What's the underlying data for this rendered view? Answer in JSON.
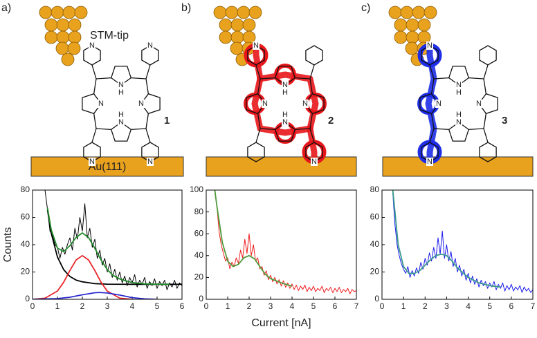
{
  "figure": {
    "structures": [
      {
        "panel": "a)",
        "compound": "1",
        "tip_label": "STM-tip",
        "substrate_label": "Au(111)",
        "atoms": [
          "N",
          "N",
          "N",
          "N",
          "H",
          "H",
          "N",
          "N",
          "N",
          "N"
        ]
      },
      {
        "panel": "b)",
        "compound": "2",
        "atoms": [
          "N",
          "N",
          "N",
          "N",
          "H",
          "H",
          "N",
          "N"
        ]
      },
      {
        "panel": "c)",
        "compound": "3",
        "atoms": [
          "N",
          "N",
          "N",
          "N",
          "H",
          "H",
          "N",
          "N"
        ]
      }
    ]
  },
  "chart_data": [
    {
      "type": "line",
      "y_label": "Counts",
      "xlim": [
        0,
        6
      ],
      "ylim": [
        0,
        80
      ],
      "xticks": [
        0,
        1,
        2,
        3,
        4,
        5,
        6
      ],
      "yticks": [
        0,
        20,
        40,
        60,
        80
      ],
      "series": [
        {
          "color": "#000000",
          "x": [
            0.5,
            0.6,
            0.7,
            0.8,
            0.9,
            1.0,
            1.1,
            1.2,
            1.3,
            1.4,
            1.5,
            1.6,
            1.7,
            1.8,
            1.9,
            2.0,
            2.1,
            2.2,
            2.3,
            2.4,
            2.5,
            2.6,
            2.7,
            2.8,
            2.9,
            3.0,
            3.1,
            3.2,
            3.3,
            3.4,
            3.5,
            3.6,
            3.7,
            3.8,
            3.9,
            4.0,
            4.1,
            4.2,
            4.3,
            4.4,
            4.5,
            4.6,
            4.7,
            4.8,
            4.9,
            5.0,
            5.1,
            5.2,
            5.3,
            5.4,
            5.5,
            5.6,
            5.7,
            5.8,
            5.9,
            6.0
          ],
          "values": [
            80,
            66,
            50,
            47,
            40,
            38,
            30,
            38,
            33,
            40,
            45,
            36,
            52,
            44,
            60,
            50,
            70,
            45,
            52,
            38,
            44,
            30,
            36,
            25,
            30,
            20,
            26,
            16,
            22,
            14,
            20,
            12,
            17,
            10,
            16,
            12,
            18,
            9,
            14,
            11,
            16,
            8,
            13,
            10,
            15,
            8,
            13,
            10,
            14,
            7,
            12,
            9,
            14,
            8,
            12,
            10
          ]
        },
        {
          "color": "#000000",
          "x": [
            0.6,
            0.75,
            1.0,
            1.25,
            1.5,
            1.75,
            2.0,
            2.5,
            3.0,
            4.0,
            5.0,
            6.0
          ],
          "values": [
            65.5,
            48.5,
            31,
            21.7,
            16.7,
            14.1,
            12.8,
            11.5,
            11.1,
            11,
            11,
            11
          ]
        },
        {
          "color": "#e8262a",
          "x": [
            0,
            0.5,
            1,
            1.25,
            1.5,
            1.75,
            2,
            2.25,
            2.5,
            2.75,
            3,
            3.5,
            4
          ],
          "values": [
            0,
            0.8,
            6,
            12.5,
            21.1,
            28.8,
            32,
            28.8,
            21.1,
            12.5,
            6,
            0.8,
            0
          ]
        },
        {
          "color": "#2a2ad0",
          "x": [
            0,
            1,
            1.5,
            2,
            2.5,
            2.7,
            3,
            3.5,
            4,
            4.5,
            5
          ],
          "values": [
            0,
            0.5,
            1.5,
            3.3,
            4.8,
            5,
            4.6,
            3.1,
            1.2,
            0.3,
            0
          ]
        },
        {
          "color": "#1f8a2a",
          "x": [
            0.6,
            0.75,
            1.0,
            1.25,
            1.5,
            1.75,
            2.0,
            2.25,
            2.5,
            2.75,
            3.0,
            3.25,
            3.5,
            4.0,
            4.5,
            5.0,
            5.5
          ],
          "values": [
            67,
            51,
            37.5,
            35,
            39.3,
            45.3,
            48.6,
            45.2,
            37.4,
            28.8,
            21.7,
            17.3,
            14.9,
            12.2,
            11.3,
            11,
            11
          ]
        }
      ]
    },
    {
      "type": "line",
      "x_label": "Current [nA]",
      "xlim": [
        0,
        7
      ],
      "ylim": [
        0,
        100
      ],
      "xticks": [
        0,
        1,
        2,
        3,
        4,
        5,
        6,
        7
      ],
      "yticks": [
        0,
        20,
        40,
        60,
        80,
        100
      ],
      "series": [
        {
          "color": "#ee1c1c",
          "x": [
            0.4,
            0.5,
            0.6,
            0.7,
            0.8,
            0.9,
            1.0,
            1.1,
            1.2,
            1.3,
            1.4,
            1.5,
            1.6,
            1.7,
            1.8,
            1.9,
            2.0,
            2.1,
            2.2,
            2.3,
            2.4,
            2.5,
            2.6,
            2.7,
            2.8,
            2.9,
            3.0,
            3.1,
            3.2,
            3.3,
            3.4,
            3.5,
            3.6,
            3.7,
            3.8,
            3.9,
            4.0,
            4.1,
            4.2,
            4.3,
            4.4,
            4.5,
            4.6,
            4.7,
            4.8,
            4.9,
            5.0,
            5.1,
            5.2,
            5.3,
            5.4,
            5.5,
            5.6,
            5.7,
            5.8,
            5.9,
            6.0,
            6.1,
            6.2,
            6.3,
            6.4,
            6.5,
            6.6,
            6.7,
            6.8,
            6.9,
            7.0
          ],
          "values": [
            98,
            85,
            62,
            50,
            42,
            35,
            38,
            28,
            34,
            30,
            38,
            33,
            45,
            38,
            55,
            42,
            60,
            40,
            50,
            35,
            38,
            28,
            30,
            22,
            26,
            18,
            22,
            16,
            20,
            14,
            18,
            12,
            17,
            11,
            15,
            10,
            14,
            9,
            13,
            8,
            12,
            9,
            13,
            7,
            11,
            8,
            12,
            7,
            10,
            8,
            12,
            6,
            10,
            8,
            11,
            6,
            10,
            7,
            11,
            6,
            9,
            7,
            10,
            5,
            9,
            7,
            8
          ]
        },
        {
          "color": "#4e9a3a",
          "x": [
            0.4,
            0.5,
            0.75,
            1,
            1.25,
            1.5,
            1.75,
            2,
            2.25,
            2.5,
            2.75,
            3,
            3.5,
            4
          ],
          "values": [
            100,
            85,
            52,
            35,
            30,
            32,
            38,
            40,
            37,
            30,
            23,
            19,
            15,
            12
          ]
        }
      ]
    },
    {
      "type": "line",
      "xlim": [
        0,
        7
      ],
      "ylim": [
        0,
        80
      ],
      "xticks": [
        0,
        1,
        2,
        3,
        4,
        5,
        6,
        7
      ],
      "yticks": [
        0,
        20,
        40,
        60,
        80
      ],
      "series": [
        {
          "color": "#1a1aee",
          "x": [
            0.5,
            0.6,
            0.7,
            0.8,
            0.9,
            1.0,
            1.1,
            1.2,
            1.3,
            1.4,
            1.5,
            1.6,
            1.7,
            1.8,
            1.9,
            2.0,
            2.1,
            2.2,
            2.3,
            2.4,
            2.5,
            2.6,
            2.7,
            2.8,
            2.9,
            3.0,
            3.1,
            3.2,
            3.3,
            3.4,
            3.5,
            3.6,
            3.7,
            3.8,
            3.9,
            4.0,
            4.1,
            4.2,
            4.3,
            4.4,
            4.5,
            4.6,
            4.7,
            4.8,
            4.9,
            5.0,
            5.1,
            5.2,
            5.3,
            5.4,
            5.5,
            5.6,
            5.7,
            5.8,
            5.9,
            6.0,
            6.1,
            6.2,
            6.3,
            6.4,
            6.5,
            6.6,
            6.7,
            6.8,
            6.9,
            7.0
          ],
          "values": [
            78,
            55,
            40,
            32,
            26,
            22,
            19,
            24,
            16,
            21,
            17,
            23,
            19,
            27,
            22,
            30,
            25,
            34,
            28,
            38,
            30,
            45,
            33,
            50,
            30,
            40,
            28,
            35,
            24,
            30,
            20,
            25,
            17,
            22,
            14,
            19,
            12,
            17,
            11,
            15,
            9,
            14,
            10,
            13,
            8,
            12,
            9,
            13,
            7,
            11,
            8,
            12,
            6,
            10,
            7,
            11,
            6,
            9,
            7,
            10,
            5,
            9,
            6,
            8,
            5,
            7
          ]
        },
        {
          "color": "#3a9a8a",
          "x": [
            0.5,
            0.75,
            1,
            1.25,
            1.5,
            1.75,
            2,
            2.25,
            2.5,
            2.75,
            3,
            3.25,
            3.5,
            4,
            4.5,
            5,
            5.5
          ],
          "values": [
            80,
            40,
            24,
            19,
            19,
            21,
            25,
            29,
            32,
            33,
            32,
            28,
            23,
            16,
            12,
            10,
            9
          ]
        }
      ]
    }
  ]
}
